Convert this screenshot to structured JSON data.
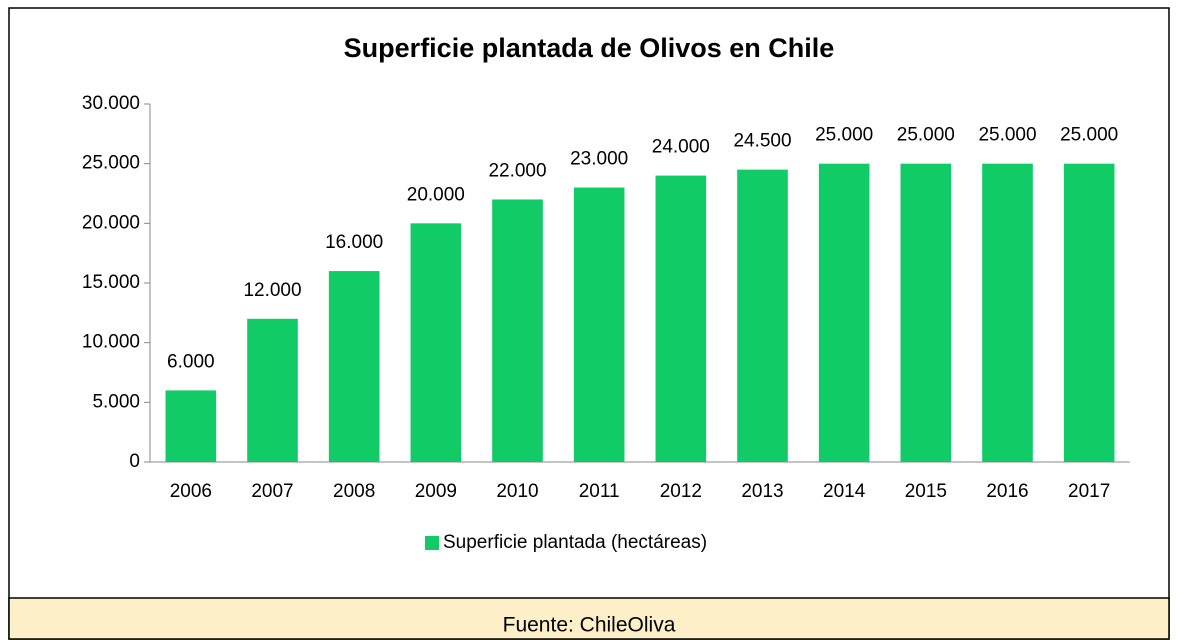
{
  "chart_data": {
    "type": "bar",
    "title": "Superficie plantada de Olivos en Chile",
    "categories": [
      "2006",
      "2007",
      "2008",
      "2009",
      "2010",
      "2011",
      "2012",
      "2013",
      "2014",
      "2015",
      "2016",
      "2017"
    ],
    "series": [
      {
        "name": "Superficie plantada (hectáreas)",
        "color": "#11cc66",
        "values": [
          6000,
          12000,
          16000,
          20000,
          22000,
          23000,
          24000,
          24500,
          25000,
          25000,
          25000,
          25000
        ],
        "value_labels": [
          "6.000",
          "12.000",
          "16.000",
          "20.000",
          "22.000",
          "23.000",
          "24.000",
          "24.500",
          "25.000",
          "25.000",
          "25.000",
          "25.000"
        ]
      }
    ],
    "ylim": [
      0,
      30000
    ],
    "yticks": [
      0,
      {
        "value": 5000,
        "label": "5.000"
      },
      {
        "value": 10000,
        "label": "10.000"
      },
      {
        "value": 15000,
        "label": "15.000"
      },
      {
        "value": 20000,
        "label": "20.000"
      },
      {
        "value": 25000,
        "label": "25.000"
      },
      {
        "value": 30000,
        "label": "30.000"
      }
    ],
    "grid": false,
    "legend": "bottom",
    "source": "Fuente: ChileOliva"
  }
}
